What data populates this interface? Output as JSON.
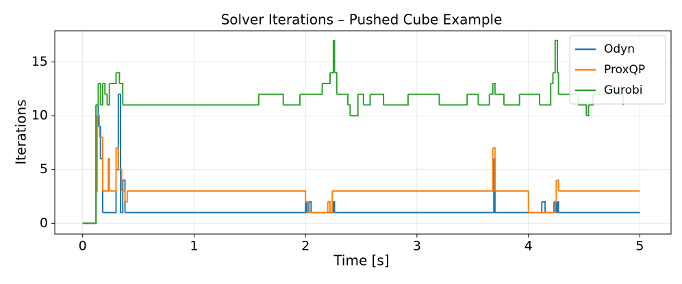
{
  "chart_data": {
    "type": "step",
    "title": "Solver Iterations – Pushed Cube Example",
    "x_label": "Time [s]",
    "y_label": "Iterations",
    "xlim": [
      -0.25,
      5.28
    ],
    "ylim": [
      -1.0,
      17.9
    ],
    "xticks": [
      0,
      1,
      2,
      3,
      4,
      5
    ],
    "yticks": [
      0,
      5,
      10,
      15
    ],
    "grid": true,
    "legend": "upper right",
    "series": [
      {
        "name": "Odyn",
        "color": "#1f77b4",
        "x": [
          0,
          0.12,
          0.14,
          0.16,
          0.18,
          0.3,
          0.32,
          0.34,
          0.36,
          0.38,
          2.0,
          2.01,
          2.03,
          2.05,
          2.25,
          2.26,
          3.69,
          3.7,
          4.12,
          4.15,
          4.17,
          4.23,
          4.25,
          4.26,
          4.27,
          5.0
        ],
        "values": [
          0,
          11,
          9,
          6,
          1,
          5,
          12,
          1,
          4,
          1,
          2,
          1,
          2,
          1,
          2,
          1,
          6,
          1,
          2,
          1,
          1,
          2,
          1,
          2,
          1,
          1
        ]
      },
      {
        "name": "ProxQP",
        "color": "#ff7f0e",
        "x": [
          0,
          0.12,
          0.13,
          0.15,
          0.18,
          0.23,
          0.24,
          0.3,
          0.32,
          0.35,
          0.38,
          0.4,
          2.0,
          2.02,
          2.2,
          2.22,
          2.24,
          3.68,
          3.7,
          4.0,
          4.24,
          4.25,
          4.27,
          5.0
        ],
        "values": [
          0,
          3,
          10,
          8,
          3,
          6,
          3,
          7,
          5,
          3,
          2,
          3,
          2,
          1,
          2,
          1,
          3,
          7,
          3,
          1,
          2,
          4,
          3,
          3
        ]
      },
      {
        "name": "Gurobi",
        "color": "#2ca02c",
        "x": [
          0,
          0.12,
          0.14,
          0.16,
          0.18,
          0.2,
          0.22,
          0.24,
          0.3,
          0.33,
          0.36,
          1.58,
          1.8,
          1.95,
          2.15,
          2.22,
          2.25,
          2.26,
          2.28,
          2.38,
          2.4,
          2.47,
          2.52,
          2.58,
          2.7,
          2.92,
          3.2,
          3.45,
          3.55,
          3.65,
          3.68,
          3.7,
          3.78,
          3.92,
          4.1,
          4.2,
          4.22,
          4.24,
          4.26,
          4.27,
          4.45,
          4.52,
          4.54,
          4.58,
          4.85
        ],
        "values": [
          0,
          11,
          13,
          11,
          13,
          12,
          11,
          13,
          14,
          13,
          11,
          12,
          11,
          12,
          13,
          14,
          17,
          14,
          12,
          11,
          10,
          12,
          11,
          12,
          11,
          12,
          11,
          12,
          11,
          12,
          13,
          12,
          11,
          12,
          11,
          13,
          14,
          17,
          14,
          12,
          11,
          10,
          11,
          12,
          11
        ]
      }
    ]
  }
}
